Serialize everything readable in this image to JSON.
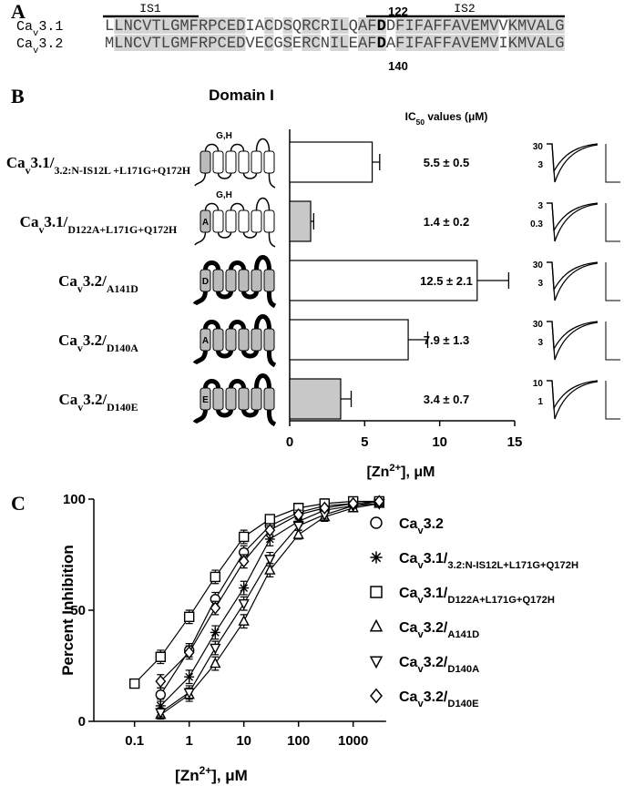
{
  "panel_labels": [
    "A",
    "B",
    "C"
  ],
  "alignment": {
    "segments": [
      {
        "label": "IS1"
      },
      {
        "label": "IS2"
      }
    ],
    "sequences": [
      {
        "name": [
          "Ca",
          "v",
          "3.1"
        ],
        "residues": [
          "LLNCVTLGMFRPCEDIACDSQRCRILQAF",
          "D",
          "DFIFAFFAVEMVVKMVALG"
        ],
        "position": 122
      },
      {
        "name": [
          "Ca",
          "v",
          "3.2"
        ],
        "residues": [
          "MLNCVTLGMFRPCEDVECGSERCNILEAF",
          "D",
          "AFIFAFFAVEMVIKMVALG"
        ],
        "position": 140
      }
    ]
  },
  "domain_title": "Domain I",
  "ic50_header": [
    "IC",
    "50",
    " values (μM)"
  ],
  "topology": [
    {
      "top": "G,H"
    },
    {
      "top": "G,H",
      "mark": "A"
    },
    {
      "mark": "D"
    },
    {
      "mark": "A"
    },
    {
      "mark": "E"
    }
  ],
  "traces": [
    [
      30,
      3
    ],
    [
      3,
      0.3
    ],
    [
      30,
      3
    ],
    [
      30,
      3
    ],
    [
      10,
      1
    ]
  ],
  "chart_data": [
    {
      "type": "bar",
      "orientation": "horizontal",
      "categories": [
        [
          "Ca",
          "v",
          "3.1/",
          "3.2:N-IS12L +L171G+Q172H"
        ],
        [
          "Ca",
          "v",
          "3.1/",
          "D122A+L171G+Q172H"
        ],
        [
          "Ca",
          "v",
          "3.2/",
          "A141D"
        ],
        [
          "Ca",
          "v",
          "3.2/",
          "D140A"
        ],
        [
          "Ca",
          "v",
          "3.2/",
          "D140E"
        ]
      ],
      "values": [
        5.5,
        1.4,
        12.5,
        7.9,
        3.4
      ],
      "errors": [
        0.5,
        0.2,
        2.1,
        1.3,
        0.7
      ],
      "value_labels": [
        "5.5 ± 0.5",
        "1.4 ± 0.2",
        "12.5 ± 2.1",
        "7.9 ± 1.3",
        "3.4 ± 0.7"
      ],
      "colors": [
        "#ffffff",
        "#c8c8c8",
        "#ffffff",
        "#ffffff",
        "#c8c8c8"
      ],
      "xlim": [
        0,
        15
      ],
      "xticks": [
        0,
        5,
        10,
        15
      ],
      "xlabel": [
        "[Zn",
        "2+",
        "], μM"
      ]
    },
    {
      "type": "scatter",
      "xscale": "log",
      "x": [
        0.1,
        0.3,
        1,
        3,
        10,
        30,
        100,
        300,
        1000,
        3000
      ],
      "xlim": [
        0.018,
        4000
      ],
      "xticks": [
        0.1,
        1,
        10,
        100,
        1000
      ],
      "ylim": [
        0,
        100
      ],
      "yticks": [
        0,
        50,
        100
      ],
      "ylabel": "Percent Inhibition",
      "xlabel": [
        "[Zn",
        "2+",
        "], μM"
      ],
      "series": [
        {
          "name": [
            "Ca",
            "v",
            "3.2"
          ],
          "marker": "circle",
          "values": [
            null,
            12,
            32,
            55,
            76,
            88,
            94,
            97,
            98,
            99
          ],
          "errors": [
            null,
            3,
            3,
            3,
            3,
            2,
            2,
            1,
            1,
            1
          ]
        },
        {
          "name": [
            "Ca",
            "v",
            "3.1/",
            "3.2:N-IS12L+L171G+Q172H"
          ],
          "marker": "asterisk",
          "values": [
            null,
            7,
            20,
            40,
            60,
            82,
            90,
            95,
            97,
            99
          ],
          "errors": [
            null,
            3,
            3,
            3,
            3,
            3,
            2,
            1,
            1,
            1
          ]
        },
        {
          "name": [
            "Ca",
            "v",
            "3.1/",
            "D122A+L171G+Q172H"
          ],
          "marker": "square",
          "values": [
            17,
            29,
            47,
            65,
            83,
            91,
            96,
            98,
            99,
            99
          ],
          "errors": [
            2,
            3,
            3,
            3,
            3,
            2,
            2,
            1,
            1,
            1
          ]
        },
        {
          "name": [
            "Ca",
            "v",
            "3.2/",
            "A141D"
          ],
          "marker": "triangle-up",
          "values": [
            null,
            3,
            12,
            26,
            45,
            68,
            84,
            92,
            96,
            98
          ],
          "errors": [
            null,
            2,
            3,
            3,
            3,
            3,
            2,
            2,
            1,
            1
          ]
        },
        {
          "name": [
            "Ca",
            "v",
            "3.2/",
            "D140A"
          ],
          "marker": "triangle-down",
          "values": [
            null,
            4,
            13,
            33,
            53,
            73,
            88,
            93,
            97,
            98
          ],
          "errors": [
            null,
            2,
            3,
            3,
            3,
            3,
            2,
            2,
            1,
            1
          ]
        },
        {
          "name": [
            "Ca",
            "v",
            "3.2/",
            "D140E"
          ],
          "marker": "diamond",
          "values": [
            null,
            18,
            31,
            51,
            72,
            86,
            93,
            96,
            98,
            99
          ],
          "errors": [
            null,
            3,
            3,
            3,
            3,
            2,
            2,
            1,
            1,
            1
          ]
        }
      ]
    }
  ]
}
